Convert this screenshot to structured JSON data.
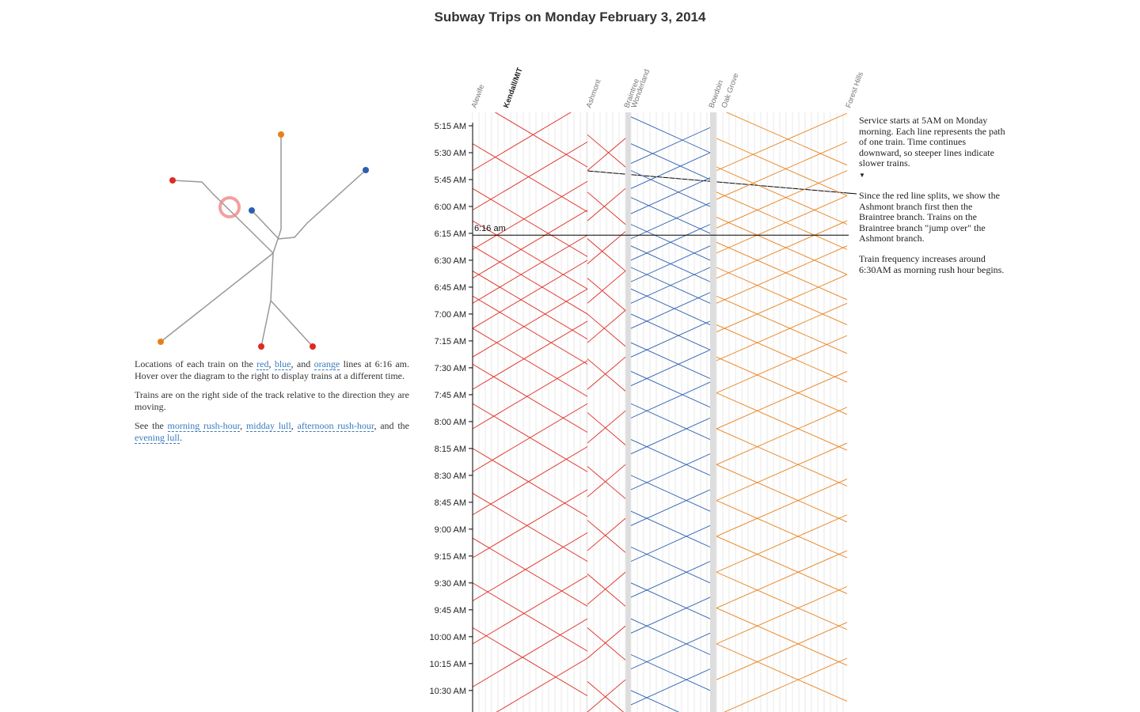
{
  "title": "Subway Trips on Monday February 3, 2014",
  "chart_data": {
    "type": "marey",
    "ylim": [
      307.5,
      642
    ],
    "yticks": [
      {
        "value": 315,
        "label": "5:15 AM"
      },
      {
        "value": 330,
        "label": "5:30 AM"
      },
      {
        "value": 345,
        "label": "5:45 AM"
      },
      {
        "value": 360,
        "label": "6:00 AM"
      },
      {
        "value": 375,
        "label": "6:15 AM"
      },
      {
        "value": 390,
        "label": "6:30 AM"
      },
      {
        "value": 405,
        "label": "6:45 AM"
      },
      {
        "value": 420,
        "label": "7:00 AM"
      },
      {
        "value": 435,
        "label": "7:15 AM"
      },
      {
        "value": 450,
        "label": "7:30 AM"
      },
      {
        "value": 465,
        "label": "7:45 AM"
      },
      {
        "value": 480,
        "label": "8:00 AM"
      },
      {
        "value": 495,
        "label": "8:15 AM"
      },
      {
        "value": 510,
        "label": "8:30 AM"
      },
      {
        "value": 525,
        "label": "8:45 AM"
      },
      {
        "value": 540,
        "label": "9:00 AM"
      },
      {
        "value": 555,
        "label": "9:15 AM"
      },
      {
        "value": 570,
        "label": "9:30 AM"
      },
      {
        "value": 585,
        "label": "9:45 AM"
      },
      {
        "value": 600,
        "label": "10:00 AM"
      },
      {
        "value": 615,
        "label": "10:15 AM"
      },
      {
        "value": 630,
        "label": "10:30 AM"
      }
    ],
    "cursor": {
      "value": 376,
      "label": "6:16 am"
    },
    "panels": [
      {
        "color": "#e02a20",
        "stations": [
          "Alewife",
          "Kendall/MIT",
          "Ashmont"
        ],
        "trips": [
          [
            300,
            338
          ],
          [
            325,
            363
          ],
          [
            350,
            388
          ],
          [
            368,
            406
          ],
          [
            382,
            420
          ],
          [
            396,
            434
          ],
          [
            410,
            448
          ],
          [
            428,
            466
          ],
          [
            448,
            486
          ],
          [
            470,
            508
          ],
          [
            495,
            533
          ],
          [
            520,
            558
          ],
          [
            545,
            583
          ],
          [
            570,
            608
          ],
          [
            595,
            633
          ],
          [
            340,
            302
          ],
          [
            362,
            324
          ],
          [
            384,
            346
          ],
          [
            400,
            362
          ],
          [
            414,
            376
          ],
          [
            428,
            390
          ],
          [
            444,
            406
          ],
          [
            462,
            424
          ],
          [
            484,
            446
          ],
          [
            508,
            470
          ],
          [
            532,
            494
          ],
          [
            556,
            518
          ],
          [
            580,
            542
          ],
          [
            604,
            566
          ],
          [
            628,
            590
          ],
          [
            650,
            612
          ]
        ]
      },
      {
        "color": "#e02a20",
        "stations": [
          "Braintree"
        ],
        "trips": [
          [
            320,
            338
          ],
          [
            352,
            370
          ],
          [
            378,
            396
          ],
          [
            400,
            418
          ],
          [
            420,
            438
          ],
          [
            445,
            463
          ],
          [
            475,
            493
          ],
          [
            505,
            523
          ],
          [
            535,
            553
          ],
          [
            565,
            583
          ],
          [
            595,
            613
          ],
          [
            625,
            643
          ],
          [
            340,
            322
          ],
          [
            368,
            350
          ],
          [
            392,
            374
          ],
          [
            414,
            396
          ],
          [
            436,
            418
          ],
          [
            462,
            444
          ],
          [
            492,
            474
          ],
          [
            522,
            504
          ],
          [
            552,
            534
          ],
          [
            582,
            564
          ],
          [
            612,
            594
          ],
          [
            642,
            624
          ]
        ]
      },
      {
        "color": "#2c5fb0",
        "stations": [
          "Wonderland",
          "Bowdoin"
        ],
        "trips": [
          [
            310,
            330
          ],
          [
            325,
            345
          ],
          [
            340,
            360
          ],
          [
            355,
            375
          ],
          [
            370,
            390
          ],
          [
            382,
            402
          ],
          [
            394,
            414
          ],
          [
            406,
            426
          ],
          [
            420,
            440
          ],
          [
            436,
            456
          ],
          [
            452,
            472
          ],
          [
            470,
            490
          ],
          [
            490,
            510
          ],
          [
            510,
            530
          ],
          [
            530,
            550
          ],
          [
            550,
            570
          ],
          [
            570,
            590
          ],
          [
            590,
            610
          ],
          [
            610,
            630
          ],
          [
            630,
            650
          ],
          [
            336,
            316
          ],
          [
            350,
            330
          ],
          [
            364,
            344
          ],
          [
            378,
            358
          ],
          [
            390,
            370
          ],
          [
            402,
            382
          ],
          [
            414,
            394
          ],
          [
            428,
            408
          ],
          [
            444,
            424
          ],
          [
            460,
            440
          ],
          [
            478,
            458
          ],
          [
            498,
            478
          ],
          [
            518,
            498
          ],
          [
            538,
            518
          ],
          [
            558,
            538
          ],
          [
            578,
            558
          ],
          [
            598,
            578
          ],
          [
            618,
            598
          ],
          [
            638,
            618
          ]
        ]
      },
      {
        "color": "#e8801a",
        "stations": [
          "Oak Grove",
          "Forest Hills"
        ],
        "trips": [
          [
            305,
            337
          ],
          [
            322,
            354
          ],
          [
            338,
            370
          ],
          [
            352,
            384
          ],
          [
            366,
            398
          ],
          [
            380,
            412
          ],
          [
            394,
            426
          ],
          [
            410,
            442
          ],
          [
            426,
            458
          ],
          [
            444,
            476
          ],
          [
            464,
            496
          ],
          [
            484,
            516
          ],
          [
            504,
            536
          ],
          [
            524,
            556
          ],
          [
            544,
            576
          ],
          [
            564,
            596
          ],
          [
            584,
            616
          ],
          [
            604,
            636
          ],
          [
            340,
            308
          ],
          [
            356,
            324
          ],
          [
            372,
            340
          ],
          [
            386,
            354
          ],
          [
            400,
            368
          ],
          [
            414,
            382
          ],
          [
            430,
            398
          ],
          [
            446,
            414
          ],
          [
            464,
            432
          ],
          [
            484,
            452
          ],
          [
            504,
            472
          ],
          [
            524,
            492
          ],
          [
            544,
            512
          ],
          [
            564,
            532
          ],
          [
            584,
            552
          ],
          [
            604,
            572
          ],
          [
            624,
            592
          ],
          [
            644,
            612
          ]
        ]
      }
    ]
  },
  "annotations": [
    "Service starts at 5AM on Monday morning. Each line represents the path of one train. Time continues downward, so steeper lines indicate slower trains.",
    "Since the red line splits, we show the Ashmont branch first then the Braintree branch. Trains on the Braintree branch \"jump over\" the Ashmont branch.",
    "Train frequency increases around 6:30AM as morning rush hour begins."
  ],
  "text": {
    "paragraphs": [
      {
        "parts": [
          "Locations of each train on the ",
          {
            "text": "red",
            "link": true
          },
          ", ",
          {
            "text": "blue",
            "link": true
          },
          ", and ",
          {
            "text": "orange",
            "link": true
          },
          " lines at 6:16 am. Hover over the diagram to the right to display trains at a different time."
        ]
      },
      {
        "parts": [
          "Trains are on the right side of the track relative to the direction they are moving."
        ]
      },
      {
        "parts": [
          "See the ",
          {
            "text": "morning rush-hour",
            "link": true
          },
          ", ",
          {
            "text": "midday lull",
            "link": true
          },
          ", ",
          {
            "text": "afternoon rush-hour",
            "link": true
          },
          ", and the ",
          {
            "text": "evening lull",
            "link": true
          },
          "."
        ]
      }
    ]
  }
}
